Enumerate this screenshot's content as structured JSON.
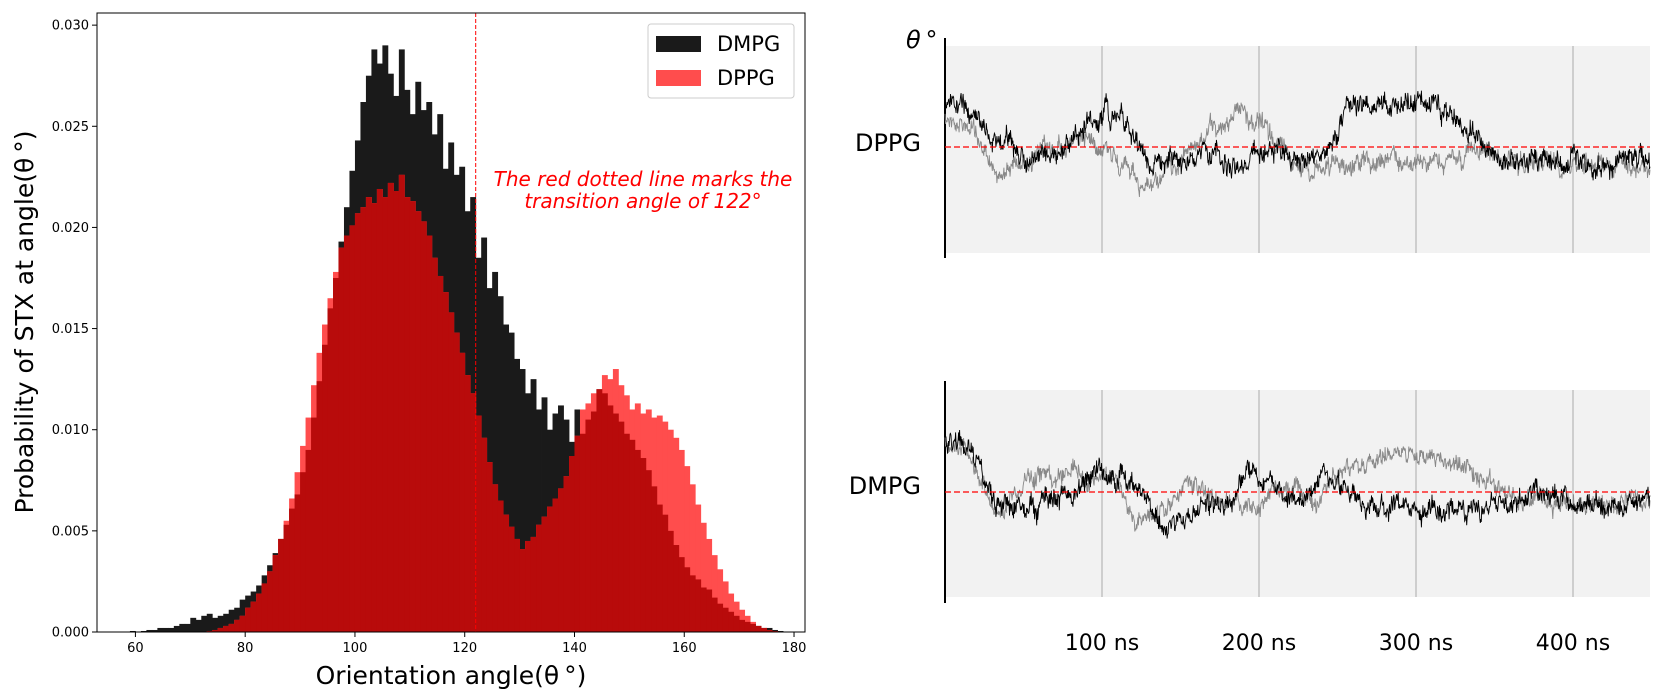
{
  "chart_data": [
    {
      "type": "histogram",
      "xlabel": "Orientation angle(θ °)",
      "ylabel": "Probability of STX at angle(θ °)",
      "xlim": [
        53,
        182
      ],
      "ylim": [
        0,
        0.0306
      ],
      "xticks": [
        60,
        80,
        100,
        120,
        140,
        160,
        180
      ],
      "yticks": [
        0.0,
        0.005,
        0.01,
        0.015,
        0.02,
        0.025,
        0.03
      ],
      "ytick_labels": [
        "0.000",
        "0.005",
        "0.010",
        "0.015",
        "0.020",
        "0.025",
        "0.030"
      ],
      "grid": false,
      "legend_position": "top-right",
      "vline": {
        "x": 122,
        "color": "#ff0000",
        "style": "dashed"
      },
      "annotation": [
        "The red dotted line marks the",
        "transition angle of 122°"
      ],
      "bin_width": 1,
      "series": [
        {
          "name": "DMPG",
          "color": "#1a1a1a",
          "bins_start": 59,
          "values": [
            5e-05,
            0.0,
            5e-05,
            0.0001,
            0.0001,
            0.0002,
            0.0002,
            0.0002,
            0.0003,
            0.0004,
            0.0004,
            0.0007,
            0.0006,
            0.0008,
            0.0009,
            0.0007,
            0.0008,
            0.0009,
            0.0011,
            0.0012,
            0.0016,
            0.0018,
            0.002,
            0.0023,
            0.0028,
            0.0033,
            0.0039,
            0.0046,
            0.0053,
            0.0061,
            0.0068,
            0.0079,
            0.009,
            0.0106,
            0.0124,
            0.0142,
            0.016,
            0.0175,
            0.0193,
            0.021,
            0.0228,
            0.0243,
            0.0262,
            0.0275,
            0.0288,
            0.0281,
            0.029,
            0.0276,
            0.0265,
            0.0288,
            0.0268,
            0.0256,
            0.0272,
            0.0258,
            0.0262,
            0.0246,
            0.0256,
            0.0229,
            0.0242,
            0.0226,
            0.023,
            0.0208,
            0.0215,
            0.0185,
            0.0195,
            0.017,
            0.0178,
            0.0166,
            0.0152,
            0.0148,
            0.0135,
            0.013,
            0.0118,
            0.0125,
            0.011,
            0.0116,
            0.01,
            0.0108,
            0.0112,
            0.0105,
            0.0094,
            0.011,
            0.0098,
            0.0105,
            0.0109,
            0.012,
            0.0118,
            0.0112,
            0.0108,
            0.0104,
            0.0098,
            0.0095,
            0.009,
            0.0086,
            0.008,
            0.0072,
            0.0063,
            0.0058,
            0.005,
            0.0043,
            0.0037,
            0.0032,
            0.0028,
            0.0026,
            0.0022,
            0.0021,
            0.0017,
            0.0014,
            0.0012,
            0.001,
            0.0008,
            0.0006,
            0.0005,
            0.0004,
            0.0003,
            0.0002,
            0.0002,
            0.0001,
            5e-05,
            0.0
          ]
        },
        {
          "name": "DPPG",
          "color": "#ff4d4d",
          "bins_start": 59,
          "values": [
            0.0,
            0.0,
            0.0,
            0.0,
            0.0,
            0.0,
            0.0,
            0.0,
            0.0,
            0.0,
            0.0,
            0.0,
            0.0,
            0.0,
            5e-05,
            0.0001,
            0.0002,
            0.0003,
            0.0004,
            0.0006,
            0.0008,
            0.0012,
            0.0015,
            0.0019,
            0.0024,
            0.003,
            0.0038,
            0.0046,
            0.0055,
            0.0066,
            0.0079,
            0.0092,
            0.0106,
            0.0122,
            0.0138,
            0.0152,
            0.0165,
            0.0178,
            0.019,
            0.0196,
            0.0201,
            0.0207,
            0.021,
            0.0215,
            0.0212,
            0.0219,
            0.0215,
            0.0222,
            0.0218,
            0.0226,
            0.0215,
            0.0213,
            0.0208,
            0.0203,
            0.0196,
            0.0185,
            0.0176,
            0.0168,
            0.0158,
            0.0148,
            0.0138,
            0.0127,
            0.0118,
            0.0107,
            0.0096,
            0.0084,
            0.0073,
            0.0065,
            0.0058,
            0.0052,
            0.0046,
            0.0041,
            0.0045,
            0.0047,
            0.0053,
            0.0057,
            0.0062,
            0.0066,
            0.0071,
            0.0077,
            0.0087,
            0.0097,
            0.011,
            0.0113,
            0.0118,
            0.012,
            0.0127,
            0.0125,
            0.013,
            0.0122,
            0.0117,
            0.011,
            0.0113,
            0.0108,
            0.011,
            0.0106,
            0.0107,
            0.0104,
            0.01,
            0.0096,
            0.009,
            0.0082,
            0.0073,
            0.0063,
            0.0054,
            0.0046,
            0.0038,
            0.0031,
            0.0025,
            0.0019,
            0.0015,
            0.0011,
            0.0008,
            0.0005,
            0.0003,
            0.0002,
            0.0001,
            5e-05,
            0.0
          ]
        }
      ]
    },
    {
      "type": "line",
      "ylabel": "θ °",
      "x_tick_labels": [
        "100 ns",
        "200 ns",
        "300 ns",
        "400 ns"
      ],
      "xlim": [
        0,
        450
      ],
      "panels": [
        {
          "label": "DPPG",
          "ref_line": "dashed red"
        },
        {
          "label": "DMPG",
          "ref_line": "dashed red"
        }
      ],
      "series": [
        {
          "name": "",
          "color": "#000000"
        },
        {
          "name": "",
          "color": "#808080"
        }
      ]
    }
  ]
}
